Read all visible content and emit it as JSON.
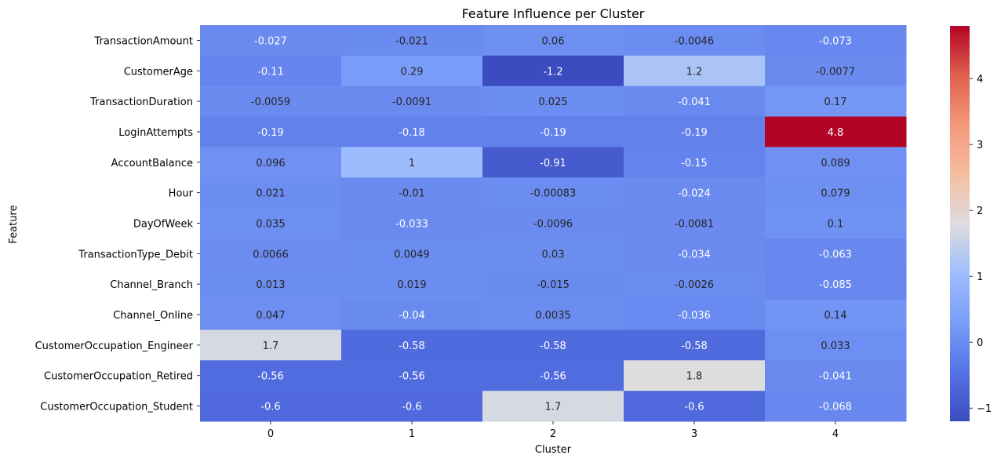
{
  "chart_data": {
    "type": "heatmap",
    "title": "Feature Influence per Cluster",
    "xlabel": "Cluster",
    "ylabel": "Feature",
    "x": [
      "0",
      "1",
      "2",
      "3",
      "4"
    ],
    "y": [
      "TransactionAmount",
      "CustomerAge",
      "TransactionDuration",
      "LoginAttempts",
      "AccountBalance",
      "Hour",
      "DayOfWeek",
      "TransactionType_Debit",
      "Channel_Branch",
      "Channel_Online",
      "CustomerOccupation_Engineer",
      "CustomerOccupation_Retired",
      "CustomerOccupation_Student"
    ],
    "values": [
      [
        -0.027,
        -0.021,
        0.06,
        -0.0046,
        -0.073
      ],
      [
        -0.11,
        0.29,
        -1.2,
        1.2,
        -0.0077
      ],
      [
        -0.0059,
        -0.0091,
        0.025,
        -0.041,
        0.17
      ],
      [
        -0.19,
        -0.18,
        -0.19,
        -0.19,
        4.8
      ],
      [
        0.096,
        1,
        -0.91,
        -0.15,
        0.089
      ],
      [
        0.021,
        -0.01,
        -0.00083,
        -0.024,
        0.079
      ],
      [
        0.035,
        -0.033,
        -0.0096,
        -0.0081,
        0.1
      ],
      [
        0.0066,
        0.0049,
        0.03,
        -0.034,
        -0.063
      ],
      [
        0.013,
        0.019,
        -0.015,
        -0.0026,
        -0.085
      ],
      [
        0.047,
        -0.04,
        0.0035,
        -0.036,
        0.14
      ],
      [
        1.7,
        -0.58,
        -0.58,
        -0.58,
        0.033
      ],
      [
        -0.56,
        -0.56,
        -0.56,
        1.8,
        -0.041
      ],
      [
        -0.6,
        -0.6,
        1.7,
        -0.6,
        -0.068
      ]
    ],
    "colormap": "coolwarm",
    "vmin": -1.2,
    "vmax": 4.8,
    "colorbar": {
      "ticks": [
        -1,
        0,
        1,
        2,
        3,
        4
      ]
    },
    "annotated": true,
    "grid": false,
    "legend": "colorbar-right"
  }
}
